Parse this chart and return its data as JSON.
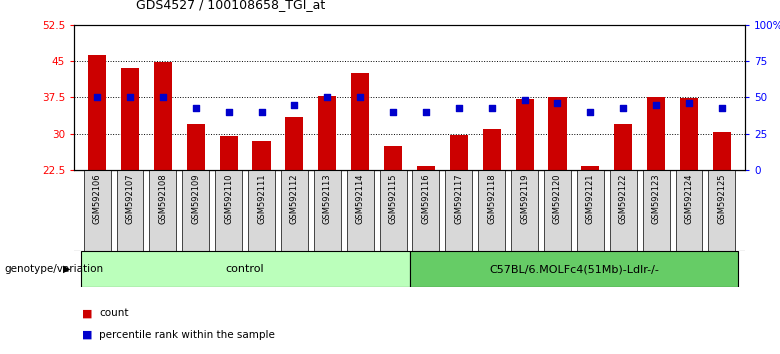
{
  "title": "GDS4527 / 100108658_TGI_at",
  "samples": [
    "GSM592106",
    "GSM592107",
    "GSM592108",
    "GSM592109",
    "GSM592110",
    "GSM592111",
    "GSM592112",
    "GSM592113",
    "GSM592114",
    "GSM592115",
    "GSM592116",
    "GSM592117",
    "GSM592118",
    "GSM592119",
    "GSM592120",
    "GSM592121",
    "GSM592122",
    "GSM592123",
    "GSM592124",
    "GSM592125"
  ],
  "counts": [
    46.2,
    43.5,
    44.8,
    32.0,
    29.5,
    28.5,
    33.5,
    37.8,
    42.5,
    27.5,
    23.3,
    29.8,
    31.0,
    37.2,
    37.5,
    23.3,
    32.0,
    37.5,
    37.3,
    30.3
  ],
  "percentile_ranks": [
    50,
    50,
    50,
    43,
    40,
    40,
    45,
    50,
    50,
    40,
    40,
    43,
    43,
    48,
    46,
    40,
    43,
    45,
    46,
    43
  ],
  "ylim_left": [
    22.5,
    52.5
  ],
  "ylim_right": [
    0,
    100
  ],
  "yticks_left": [
    22.5,
    30,
    37.5,
    45,
    52.5
  ],
  "yticks_right": [
    0,
    25,
    50,
    75,
    100
  ],
  "ytick_labels_left": [
    "22.5",
    "30",
    "37.5",
    "45",
    "52.5"
  ],
  "ytick_labels_right": [
    "0",
    "25",
    "50",
    "75",
    "100%"
  ],
  "bar_color": "#cc0000",
  "marker_color": "#0000cc",
  "bar_bottom": 22.5,
  "group1_label": "control",
  "group2_label": "C57BL/6.MOLFc4(51Mb)-Ldlr-/-",
  "group1_indices": [
    0,
    1,
    2,
    3,
    4,
    5,
    6,
    7,
    8,
    9
  ],
  "group2_indices": [
    10,
    11,
    12,
    13,
    14,
    15,
    16,
    17,
    18,
    19
  ],
  "group1_color": "#bbffbb",
  "group2_color": "#66cc66",
  "legend_count_label": "count",
  "legend_percentile_label": "percentile rank within the sample",
  "grid_yticks": [
    30,
    37.5,
    45
  ],
  "xlabel_label": "genotype/variation",
  "bg_color": "#d8d8d8"
}
